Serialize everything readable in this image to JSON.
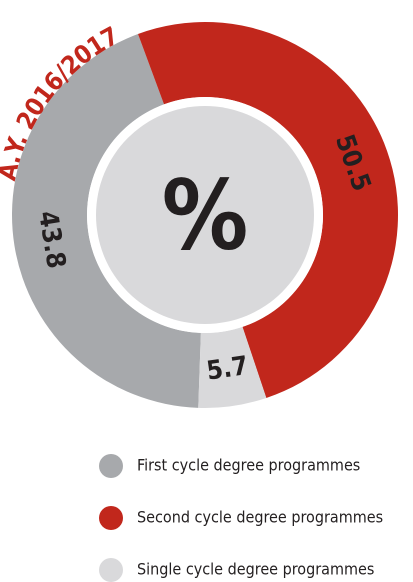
{
  "chart_data": {
    "type": "donut",
    "annotation": "A.Y. 2016/2017",
    "center_label": "%",
    "series": [
      {
        "name": "First cycle degree programmes",
        "color": "#a7a9ac",
        "values": [
          43.8
        ]
      },
      {
        "name": "Second cycle degree programmes",
        "color": "#c1271c",
        "values": [
          50.5
        ]
      },
      {
        "name": "Single cycle degree programmes",
        "color": "#d9d9db",
        "values": [
          5.7
        ]
      }
    ],
    "legend": "bottom"
  }
}
